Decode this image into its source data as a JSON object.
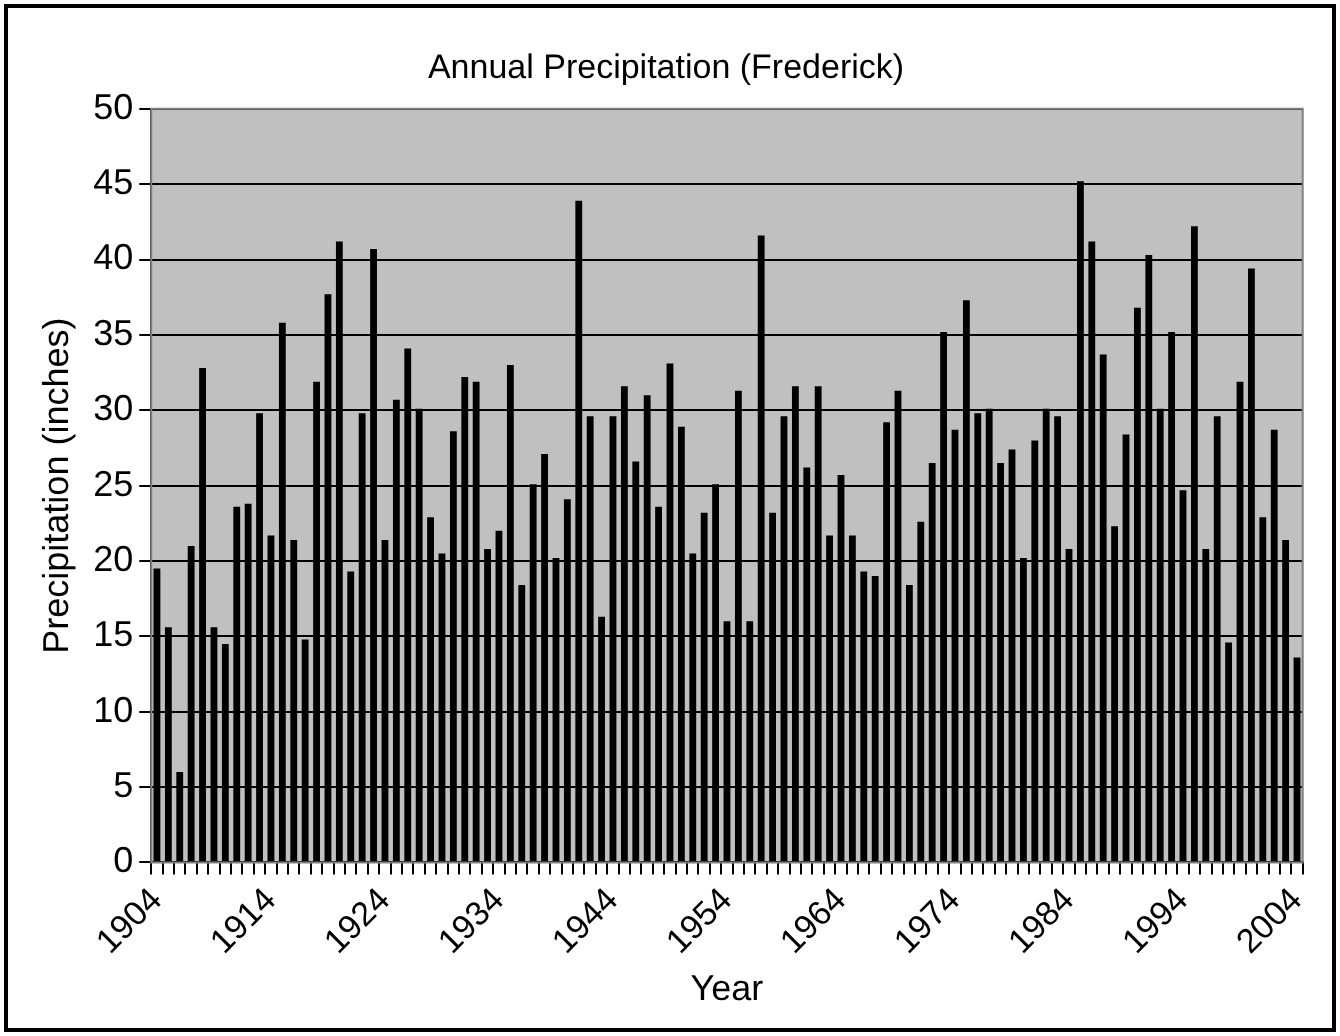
{
  "chart_data": {
    "type": "bar",
    "title": "Annual Precipitation (Frederick)",
    "xlabel": "Year",
    "ylabel": "Precipitation (inches)",
    "categories": [
      "1904",
      null,
      null,
      null,
      null,
      null,
      null,
      null,
      null,
      null,
      "1914",
      null,
      null,
      null,
      null,
      null,
      null,
      null,
      null,
      null,
      "1924",
      null,
      null,
      null,
      null,
      null,
      null,
      null,
      null,
      null,
      "1934",
      null,
      null,
      null,
      null,
      null,
      null,
      null,
      null,
      null,
      "1944",
      null,
      null,
      null,
      null,
      null,
      null,
      null,
      null,
      null,
      "1954",
      null,
      null,
      null,
      null,
      null,
      null,
      null,
      null,
      null,
      "1964",
      null,
      null,
      null,
      null,
      null,
      null,
      null,
      null,
      null,
      "1974",
      null,
      null,
      null,
      null,
      null,
      null,
      null,
      null,
      null,
      "1984",
      null,
      null,
      null,
      null,
      null,
      null,
      null,
      null,
      null,
      "1994",
      null,
      null,
      null,
      null,
      null,
      null,
      null,
      null,
      null,
      "2004"
    ],
    "values": [
      19.5,
      15.6,
      6.0,
      21.0,
      32.8,
      15.6,
      14.5,
      23.6,
      23.8,
      29.8,
      21.7,
      35.8,
      21.4,
      14.8,
      31.9,
      37.7,
      41.2,
      19.3,
      29.8,
      40.7,
      21.4,
      30.7,
      34.1,
      30.1,
      22.9,
      20.5,
      28.6,
      32.2,
      31.9,
      20.8,
      22.0,
      33.0,
      18.4,
      25.1,
      27.1,
      20.2,
      24.1,
      43.9,
      29.6,
      16.3,
      29.6,
      31.6,
      26.6,
      31.0,
      23.6,
      33.1,
      28.9,
      20.5,
      23.2,
      25.1,
      16.0,
      31.3,
      16.0,
      41.6,
      23.2,
      29.6,
      31.6,
      26.2,
      31.6,
      21.7,
      25.7,
      21.7,
      19.3,
      19.0,
      29.2,
      31.3,
      18.4,
      22.6,
      26.5,
      35.2,
      28.7,
      37.3,
      29.8,
      30.1,
      26.5,
      27.4,
      20.2,
      28.0,
      30.1,
      29.6,
      20.8,
      45.2,
      41.2,
      33.7,
      22.3,
      28.4,
      36.8,
      40.3,
      30.1,
      35.2,
      24.7,
      42.2,
      20.8,
      29.6,
      14.6,
      31.9,
      39.4,
      22.9,
      28.7,
      21.4,
      13.6
    ],
    "color": "#000000",
    "ylim": [
      0,
      50
    ],
    "yticks": [
      0,
      5,
      10,
      15,
      20,
      25,
      30,
      35,
      40,
      45,
      50
    ],
    "grid": "y",
    "legend": false
  }
}
